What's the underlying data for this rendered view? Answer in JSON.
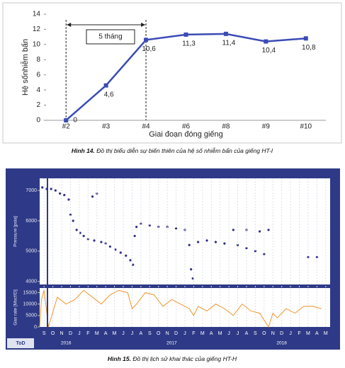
{
  "chart_data": [
    {
      "type": "line",
      "y_label": "Hệ sốnhiễm bẩn",
      "x_label": "Giai đoạn đóng giếng",
      "annotation": "5 tháng",
      "categories": [
        "#2",
        "#3",
        "#4",
        "#6",
        "#8",
        "#9",
        "#10"
      ],
      "series": [
        {
          "color": "#3b4bb5",
          "values": [
            0,
            4.6,
            10.6,
            11.3,
            11.4,
            10.4,
            10.8
          ],
          "value_labels": [
            "0",
            "4,6",
            "10,6",
            "11,3",
            "11,4",
            "10,4",
            "10,8"
          ]
        }
      ],
      "ylim": [
        0,
        14
      ],
      "yticks": [
        0,
        2,
        4,
        6,
        8,
        10,
        12,
        14
      ],
      "grid": false
    },
    {
      "type": "scatter",
      "y_label": "Pressure [psia]",
      "color": "#2e2e8a",
      "x": [
        0.3,
        0.8,
        1.3,
        1.8,
        2.3,
        2.8,
        3.3,
        3.5,
        3.8,
        4.2,
        4.6,
        5.0,
        5.5,
        6.0,
        6.5,
        6.2,
        7.0,
        7.5,
        8.0,
        8.6,
        9.2,
        9.8,
        10.3,
        10.6,
        10.8,
        11.0,
        11.5,
        12.5,
        13.5,
        14.5,
        15.5,
        16.5,
        17.0,
        17.2,
        17.4,
        18.0,
        19.0,
        20.0,
        21.0,
        22.0,
        23.5,
        25.0,
        26.0,
        22.5,
        23.5,
        24.5,
        25.5,
        30.5,
        31.5
      ],
      "values": [
        7100,
        7050,
        7050,
        7000,
        6900,
        6850,
        6700,
        6200,
        6000,
        5700,
        5600,
        5500,
        5400,
        6800,
        6900,
        5350,
        5300,
        5250,
        5150,
        5050,
        4950,
        4850,
        4700,
        4550,
        5500,
        5800,
        5900,
        5850,
        5800,
        5800,
        5750,
        5700,
        5200,
        4400,
        4100,
        5300,
        5350,
        5300,
        5250,
        5700,
        5700,
        5650,
        5700,
        5200,
        5100,
        5000,
        4900,
        4800,
        4800
      ],
      "xlim": [
        0,
        33
      ],
      "ylim": [
        3900,
        7400
      ],
      "yticks": [
        4000,
        5000,
        6000,
        7000
      ]
    },
    {
      "type": "line",
      "y_label": "Gas rate [Mscf/D]",
      "x_label": "ToD",
      "color": "#f0952a",
      "x": [
        0,
        0.2,
        0.5,
        1,
        2,
        3,
        4,
        5,
        6,
        7,
        8,
        9,
        10,
        10.5,
        11,
        12,
        13,
        14,
        15,
        16,
        17,
        17.5,
        18,
        19,
        20,
        21,
        22,
        23,
        24,
        25,
        26,
        26.5,
        27,
        28,
        29,
        30,
        31,
        32
      ],
      "values": [
        0,
        12000,
        16000,
        0,
        13000,
        10000,
        12000,
        16000,
        13000,
        10000,
        14000,
        16000,
        15000,
        8000,
        10000,
        15000,
        14000,
        9000,
        12000,
        10000,
        8000,
        5000,
        9000,
        7000,
        10000,
        8000,
        5000,
        10000,
        7000,
        6000,
        0,
        6000,
        4000,
        8000,
        6000,
        9000,
        9000,
        8000
      ],
      "xlim": [
        0,
        33
      ],
      "ylim": [
        0,
        17000
      ],
      "yticks": [
        0,
        5000,
        10000,
        15000
      ],
      "xticks": [
        {
          "value": 0.5,
          "label": "S"
        },
        {
          "value": 1.5,
          "label": "O"
        },
        {
          "value": 2.5,
          "label": "N"
        },
        {
          "value": 3.5,
          "label": "D"
        },
        {
          "value": 4.5,
          "label": "J"
        },
        {
          "value": 5.5,
          "label": "F"
        },
        {
          "value": 6.5,
          "label": "M"
        },
        {
          "value": 7.5,
          "label": "A"
        },
        {
          "value": 8.5,
          "label": "M"
        },
        {
          "value": 9.5,
          "label": "J"
        },
        {
          "value": 10.5,
          "label": "J"
        },
        {
          "value": 11.5,
          "label": "A"
        },
        {
          "value": 12.5,
          "label": "S"
        },
        {
          "value": 13.5,
          "label": "O"
        },
        {
          "value": 14.5,
          "label": "N"
        },
        {
          "value": 15.5,
          "label": "D"
        },
        {
          "value": 16.5,
          "label": "J"
        },
        {
          "value": 17.5,
          "label": "F"
        },
        {
          "value": 18.5,
          "label": "M"
        },
        {
          "value": 19.5,
          "label": "A"
        },
        {
          "value": 20.5,
          "label": "M"
        },
        {
          "value": 21.5,
          "label": "J"
        },
        {
          "value": 22.5,
          "label": "J"
        },
        {
          "value": 23.5,
          "label": "A"
        },
        {
          "value": 24.5,
          "label": "S"
        },
        {
          "value": 25.5,
          "label": "O"
        },
        {
          "value": 26.5,
          "label": "N"
        },
        {
          "value": 27.5,
          "label": "D"
        },
        {
          "value": 28.5,
          "label": "J"
        },
        {
          "value": 29.5,
          "label": "F"
        },
        {
          "value": 30.5,
          "label": "M"
        },
        {
          "value": 31.5,
          "label": "A"
        },
        {
          "value": 32.5,
          "label": "M"
        }
      ],
      "year_ticks": [
        {
          "value": 3,
          "label": "2016"
        },
        {
          "value": 15,
          "label": "2017"
        },
        {
          "value": 27.5,
          "label": "2018"
        }
      ]
    }
  ],
  "captions": [
    {
      "label": "Hình 14.",
      "text": "Đồ thị biểu diễn sự biến thiên của hệ số nhiễm bẩn của giếng HT-I"
    },
    {
      "label": "Hình 15.",
      "text": "Đồ thị lịch sử khai thác của giếng HT-H"
    }
  ]
}
